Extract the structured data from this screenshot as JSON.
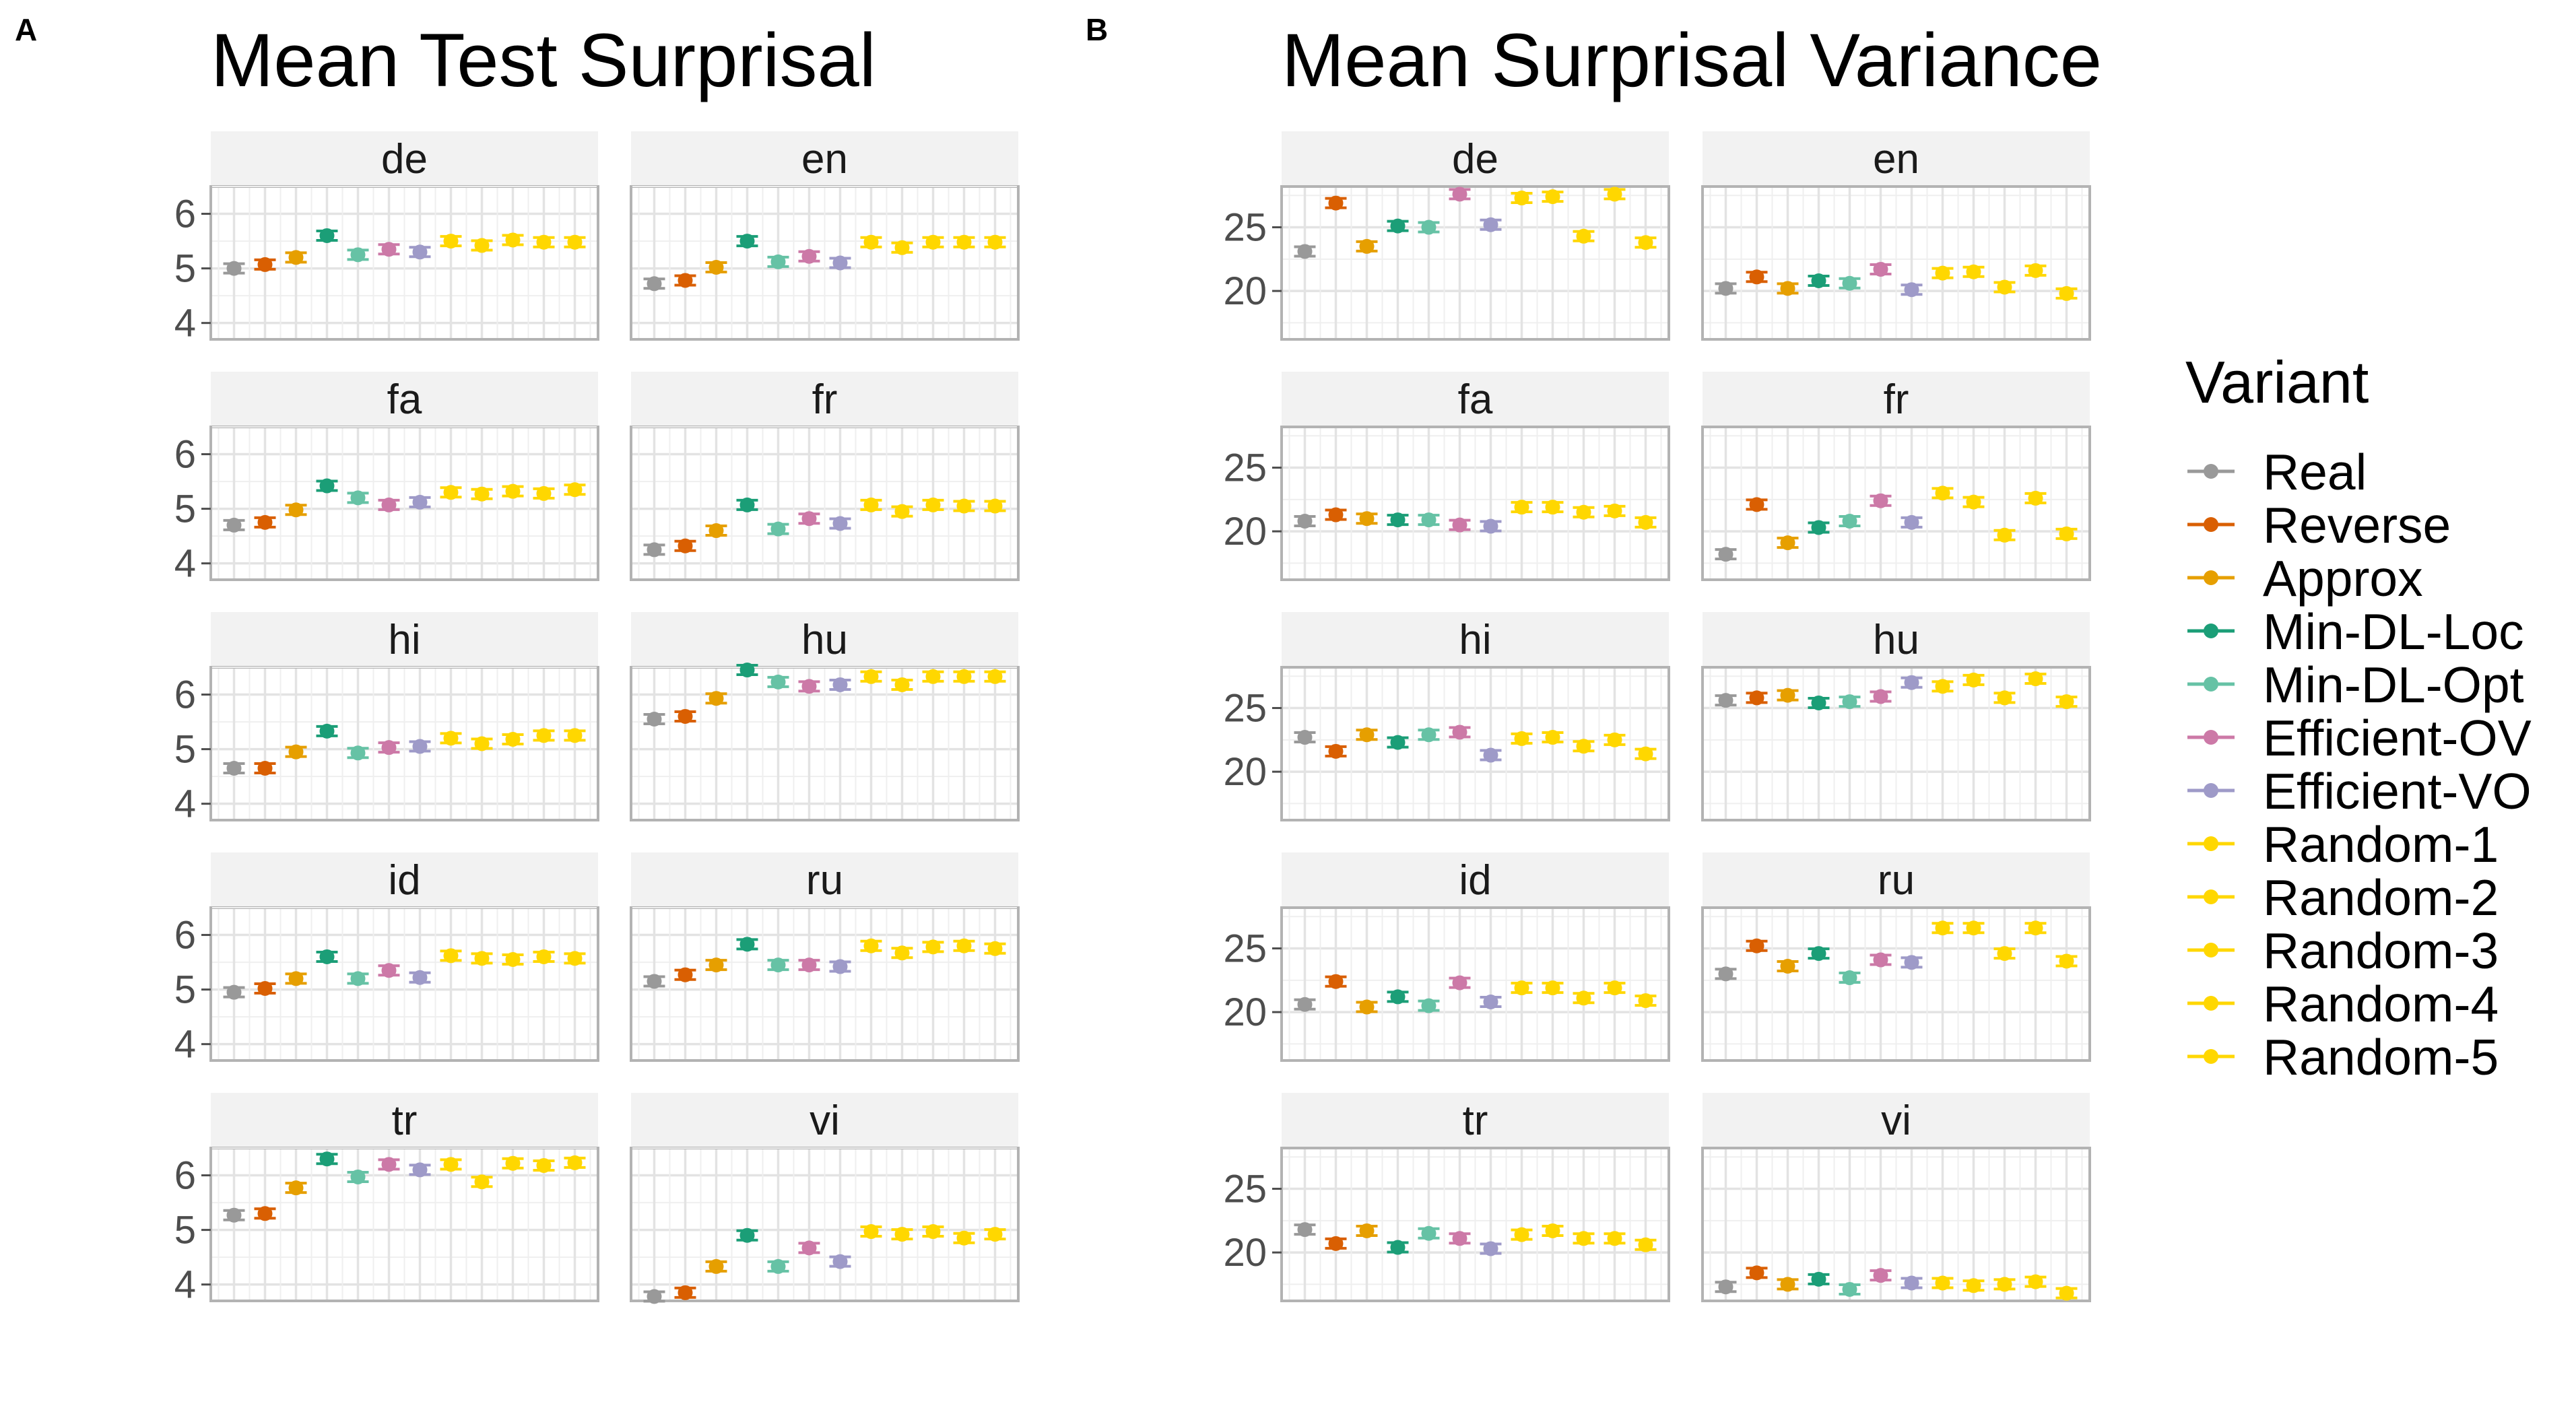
{
  "labels": {
    "a": "A",
    "b": "B"
  },
  "legend": {
    "title": "Variant",
    "items": [
      {
        "label": "Real",
        "color": "#999999"
      },
      {
        "label": "Reverse",
        "color": "#D95F02"
      },
      {
        "label": "Approx",
        "color": "#E69F00"
      },
      {
        "label": "Min-DL-Loc",
        "color": "#1B9E77"
      },
      {
        "label": "Min-DL-Opt",
        "color": "#66C2A5"
      },
      {
        "label": "Efficient-OV",
        "color": "#CC79A7"
      },
      {
        "label": "Efficient-VO",
        "color": "#9E9AC8"
      },
      {
        "label": "Random-1",
        "color": "#FFD700"
      },
      {
        "label": "Random-2",
        "color": "#FFD700"
      },
      {
        "label": "Random-3",
        "color": "#FFD700"
      },
      {
        "label": "Random-4",
        "color": "#FFD700"
      },
      {
        "label": "Random-5",
        "color": "#FFD700"
      }
    ]
  },
  "chart_data": [
    {
      "type": "scatter",
      "title": "Mean Test Surprisal",
      "ylim": [
        3.7,
        6.5
      ],
      "yticks": [
        4,
        5,
        6
      ],
      "variants": [
        "Real",
        "Reverse",
        "Approx",
        "Min-DL-Loc",
        "Min-DL-Opt",
        "Efficient-OV",
        "Efficient-VO",
        "Random-1",
        "Random-2",
        "Random-3",
        "Random-4",
        "Random-5"
      ],
      "point_slots": [
        1,
        2,
        3,
        4,
        5,
        6,
        7,
        8,
        9,
        10,
        11,
        12
      ],
      "facets": [
        {
          "name": "de",
          "values": [
            5.0,
            5.07,
            5.2,
            5.6,
            5.25,
            5.35,
            5.3,
            5.5,
            5.42,
            5.52,
            5.48,
            5.48
          ]
        },
        {
          "name": "en",
          "values": [
            4.72,
            4.78,
            5.02,
            5.5,
            5.12,
            5.22,
            5.1,
            5.48,
            5.38,
            5.48,
            5.48,
            5.48
          ]
        },
        {
          "name": "fa",
          "values": [
            4.7,
            4.75,
            4.98,
            5.42,
            5.2,
            5.07,
            5.12,
            5.3,
            5.27,
            5.32,
            5.28,
            5.35
          ]
        },
        {
          "name": "fr",
          "values": [
            4.25,
            4.32,
            4.6,
            5.07,
            4.63,
            4.82,
            4.73,
            5.07,
            4.95,
            5.07,
            5.05,
            5.05
          ]
        },
        {
          "name": "hi",
          "values": [
            4.65,
            4.65,
            4.95,
            5.33,
            4.93,
            5.03,
            5.05,
            5.2,
            5.1,
            5.18,
            5.25,
            5.25
          ]
        },
        {
          "name": "hu",
          "values": [
            5.55,
            5.6,
            5.93,
            6.45,
            6.23,
            6.15,
            6.18,
            6.33,
            6.18,
            6.33,
            6.33,
            6.33
          ]
        },
        {
          "name": "id",
          "values": [
            4.95,
            5.02,
            5.2,
            5.6,
            5.2,
            5.35,
            5.22,
            5.62,
            5.57,
            5.55,
            5.6,
            5.57
          ]
        },
        {
          "name": "ru",
          "values": [
            5.15,
            5.27,
            5.45,
            5.83,
            5.45,
            5.45,
            5.42,
            5.8,
            5.67,
            5.78,
            5.8,
            5.75
          ]
        },
        {
          "name": "tr",
          "values": [
            5.27,
            5.3,
            5.77,
            6.3,
            5.97,
            6.2,
            6.1,
            6.2,
            5.88,
            6.22,
            6.18,
            6.23
          ]
        },
        {
          "name": "vi",
          "values": [
            3.78,
            3.85,
            4.33,
            4.9,
            4.33,
            4.67,
            4.42,
            4.97,
            4.92,
            4.97,
            4.85,
            4.92
          ]
        }
      ]
    },
    {
      "type": "scatter",
      "title": "Mean Surprisal Variance",
      "ylim": [
        16.2,
        28.2
      ],
      "yticks": [
        20,
        25
      ],
      "variants": [
        "Real",
        "Reverse",
        "Approx",
        "Min-DL-Loc",
        "Min-DL-Opt",
        "Efficient-OV",
        "Efficient-VO",
        "Random-1",
        "Random-2",
        "Random-3",
        "Random-4",
        "Random-5"
      ],
      "point_slots": [
        1,
        2,
        3,
        4,
        5,
        6,
        7,
        8,
        9,
        10,
        11,
        12
      ],
      "facets": [
        {
          "name": "de",
          "values": [
            23.1,
            26.9,
            23.5,
            25.1,
            25.0,
            27.6,
            25.2,
            27.3,
            27.4,
            24.3,
            27.6,
            23.8
          ]
        },
        {
          "name": "en",
          "values": [
            20.2,
            21.1,
            20.2,
            20.8,
            20.6,
            21.7,
            20.1,
            21.4,
            21.5,
            20.3,
            21.6,
            19.8
          ]
        },
        {
          "name": "fa",
          "values": [
            20.8,
            21.3,
            21.0,
            20.9,
            20.9,
            20.5,
            20.4,
            21.9,
            21.9,
            21.5,
            21.6,
            20.7
          ]
        },
        {
          "name": "fr",
          "values": [
            18.2,
            22.1,
            19.1,
            20.3,
            20.8,
            22.4,
            20.7,
            23.0,
            22.3,
            19.7,
            22.6,
            19.8
          ]
        },
        {
          "name": "hi",
          "values": [
            22.7,
            21.6,
            22.9,
            22.3,
            22.9,
            23.1,
            21.3,
            22.6,
            22.7,
            22.0,
            22.5,
            21.4
          ]
        },
        {
          "name": "hu",
          "values": [
            25.6,
            25.8,
            26.0,
            25.4,
            25.5,
            25.9,
            27.0,
            26.7,
            27.2,
            25.8,
            27.3,
            25.5
          ]
        },
        {
          "name": "id",
          "values": [
            20.6,
            22.4,
            20.4,
            21.2,
            20.5,
            22.3,
            20.8,
            21.9,
            21.9,
            21.1,
            21.9,
            20.9
          ]
        },
        {
          "name": "ru",
          "values": [
            23.0,
            25.2,
            23.6,
            24.6,
            22.7,
            24.1,
            23.9,
            26.6,
            26.6,
            24.6,
            26.6,
            24.0
          ]
        },
        {
          "name": "tr",
          "values": [
            21.8,
            20.7,
            21.7,
            20.4,
            21.5,
            21.1,
            20.3,
            21.4,
            21.7,
            21.1,
            21.1,
            20.6
          ]
        },
        {
          "name": "vi",
          "values": [
            17.3,
            18.4,
            17.5,
            17.9,
            17.1,
            18.2,
            17.6,
            17.6,
            17.4,
            17.5,
            17.7,
            16.8
          ]
        }
      ]
    }
  ]
}
